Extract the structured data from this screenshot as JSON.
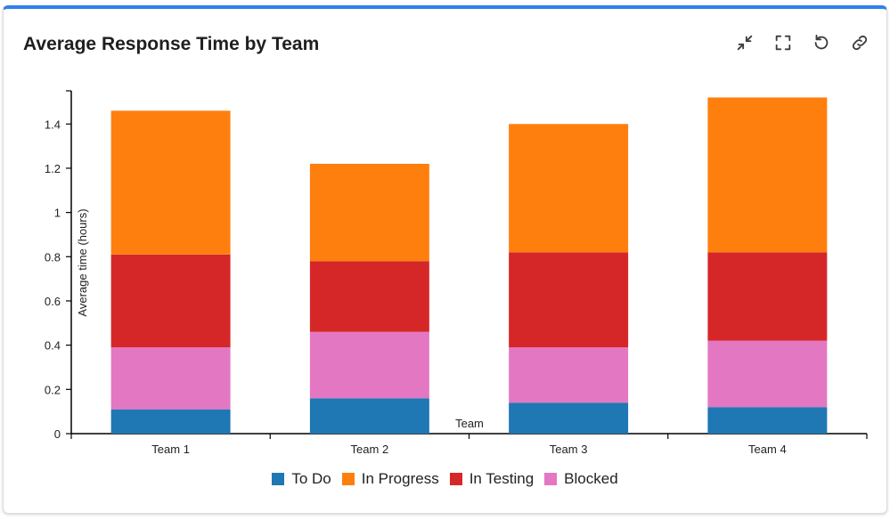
{
  "card": {
    "title": "Average Response Time by Team"
  },
  "toolbar": {
    "icons": [
      "collapse-icon",
      "fullscreen-icon",
      "reset-icon",
      "link-icon"
    ]
  },
  "chart_data": {
    "type": "bar",
    "stacked": true,
    "categories": [
      "Team 1",
      "Team 2",
      "Team 3",
      "Team 4"
    ],
    "series": [
      {
        "name": "To Do",
        "color": "#1f77b4",
        "values": [
          0.11,
          0.16,
          0.14,
          0.12
        ]
      },
      {
        "name": "Blocked",
        "color": "#e377c2",
        "values": [
          0.28,
          0.3,
          0.25,
          0.3
        ]
      },
      {
        "name": "In Testing",
        "color": "#d62728",
        "values": [
          0.42,
          0.32,
          0.43,
          0.4
        ]
      },
      {
        "name": "In Progress",
        "color": "#ff7f0e",
        "values": [
          0.65,
          0.44,
          0.58,
          0.7
        ]
      }
    ],
    "xlabel": "Team",
    "ylabel": "Average time (hours)",
    "ylim": [
      0,
      1.55
    ],
    "yticks": [
      0,
      0.2,
      0.4,
      0.6,
      0.8,
      1,
      1.2,
      1.4
    ],
    "ytick_labels": [
      "0",
      "0.2",
      "0.4",
      "0.6",
      "0.8",
      "1",
      "1.2",
      "1.4"
    ],
    "grid": false,
    "legend": {
      "placement": "bottom",
      "order": [
        "To Do",
        "In Progress",
        "In Testing",
        "Blocked"
      ]
    }
  }
}
